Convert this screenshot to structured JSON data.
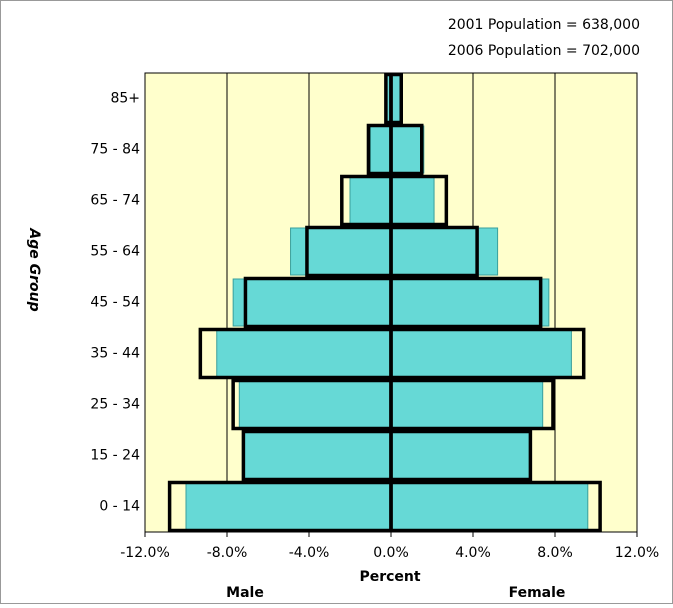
{
  "chart_data": {
    "type": "pyramid",
    "annotations": [
      "2001 Population = 638,000",
      "2006 Population = 702,000"
    ],
    "ylabel": "Age Group",
    "xlabel": "Percent",
    "side_labels": [
      "Male",
      "Female"
    ],
    "categories": [
      "0 - 14",
      "15 - 24",
      "25 - 34",
      "35 - 44",
      "45 - 54",
      "55 - 64",
      "65 - 74",
      "75 - 84",
      "85+"
    ],
    "series": [
      {
        "style": "filled",
        "color": "#66d9d6",
        "values": [
          -10.0,
          -7.2,
          -7.4,
          -8.5,
          -7.7,
          -4.9,
          -2.0,
          -1.0,
          -0.2
        ]
      },
      {
        "style": "filled",
        "color": "#66d9d6",
        "values": [
          9.6,
          6.8,
          7.4,
          8.8,
          7.7,
          5.2,
          2.1,
          1.6,
          0.45
        ]
      },
      {
        "style": "outline",
        "color": "#000000",
        "values": [
          -10.8,
          -7.2,
          -7.7,
          -9.3,
          -7.1,
          -4.1,
          -2.4,
          -1.1,
          -0.25
        ]
      },
      {
        "style": "outline",
        "color": "#000000",
        "values": [
          10.2,
          6.8,
          7.9,
          9.4,
          7.3,
          4.2,
          2.7,
          1.5,
          0.5
        ]
      }
    ],
    "xlim": [
      -12,
      12
    ],
    "xticks": [
      {
        "value": -12,
        "label": "-12.0%"
      },
      {
        "value": -8,
        "label": "-8.0%"
      },
      {
        "value": -4,
        "label": "-4.0%"
      },
      {
        "value": 0,
        "label": "0.0%"
      },
      {
        "value": 4,
        "label": "4.0%"
      },
      {
        "value": 8,
        "label": "8.0%"
      },
      {
        "value": 12,
        "label": "12.0%"
      }
    ],
    "grid": true,
    "background": "#ffffcc"
  }
}
